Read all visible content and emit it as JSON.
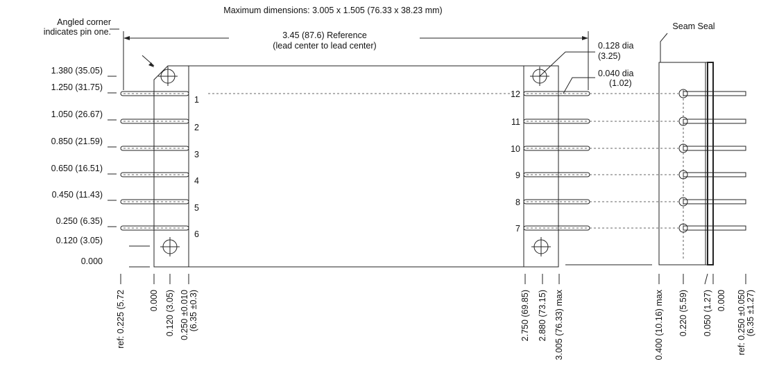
{
  "title": "Maximum dimensions: 3.005 x 1.505 (76.33 x 38.23 mm)",
  "annotations": {
    "pin_one": [
      "Angled corner",
      "indicates pin one."
    ],
    "reference": [
      "3.45 (87.6) Reference",
      "(lead center to lead center)"
    ],
    "mount_hole": [
      "0.128 dia",
      "(3.25)"
    ],
    "lead_dia": [
      "0.040 dia",
      "(1.02)"
    ],
    "seam_seal": "Seam Seal"
  },
  "left_dimensions": [
    "1.380 (35.05)",
    "1.250 (31.75)",
    "1.050 (26.67)",
    "0.850 (21.59)",
    "0.650 (16.51)",
    "0.450 (11.43)",
    "0.250 (6.35)",
    "0.120 (3.05)",
    "0.000"
  ],
  "pins_left": [
    "1",
    "2",
    "3",
    "4",
    "5",
    "6"
  ],
  "pins_right": [
    "12",
    "11",
    "10",
    "9",
    "8",
    "7"
  ],
  "bottom_dimensions": [
    [
      "ref: 0.225 (5.72"
    ],
    [
      "0.000"
    ],
    [
      "0.120 (3.05)"
    ],
    [
      "0.250 ±0.010",
      "(6.35 ±0.3)"
    ],
    [
      "2.750 (69.85)"
    ],
    [
      "2.880 (73.15)"
    ],
    [
      "3.005 (76.33) max"
    ],
    [
      "0.400 (10.16) max"
    ],
    [
      "0.220 (5.59)"
    ],
    [
      "0.050 (1.27)"
    ],
    [
      "0.000"
    ],
    [
      "ref: 0.250 ±0.050",
      "(6.35 ±1.27)"
    ]
  ]
}
